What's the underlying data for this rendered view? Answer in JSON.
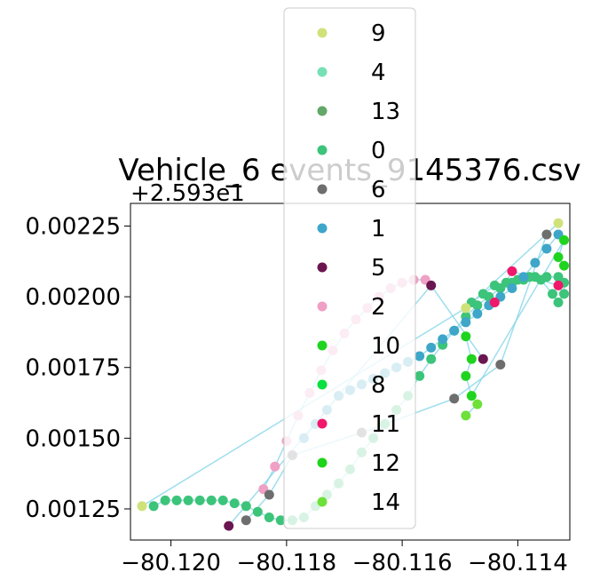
{
  "chart_data": {
    "type": "scatter",
    "title": "Vehicle_6 events_9145376.csv",
    "xlabel": "",
    "ylabel": "",
    "y_offset_label": "+2.593e1",
    "xlim": [
      -80.1207,
      -80.1131
    ],
    "ylim": [
      0.00114,
      0.00233
    ],
    "x_ticks": [
      -80.12,
      -80.118,
      -80.116,
      -80.114
    ],
    "x_tick_labels": [
      "−80.120",
      "−80.118",
      "−80.116",
      "−80.114"
    ],
    "y_ticks": [
      0.00125,
      0.0015,
      0.00175,
      0.002,
      0.00225
    ],
    "y_tick_labels": [
      "0.00125",
      "0.00150",
      "0.00175",
      "0.00200",
      "0.00225"
    ],
    "grid": false,
    "legend_position": "top-center",
    "legend": [
      {
        "label": "9",
        "color": "#cfe27a"
      },
      {
        "label": "4",
        "color": "#77e0b5"
      },
      {
        "label": "13",
        "color": "#62a868"
      },
      {
        "label": "0",
        "color": "#3cc47a"
      },
      {
        "label": "6",
        "color": "#6e6e6e"
      },
      {
        "label": "1",
        "color": "#3ea6c8"
      },
      {
        "label": "5",
        "color": "#6a1650"
      },
      {
        "label": "2",
        "color": "#f0a0c4"
      },
      {
        "label": "10",
        "color": "#1fd41f"
      },
      {
        "label": "8",
        "color": "#0ae03e"
      },
      {
        "label": "11",
        "color": "#f0186a"
      },
      {
        "label": "12",
        "color": "#1ed41a"
      },
      {
        "label": "14",
        "color": "#6ee03a"
      }
    ],
    "route_line_color": "#87d6e8",
    "series": [
      {
        "name": "0",
        "color": "#3cc47a",
        "x": [
          -80.1203,
          -80.1201,
          -80.1199,
          -80.1197,
          -80.1195,
          -80.1193,
          -80.1191,
          -80.1189,
          -80.1187,
          -80.1185,
          -80.1183,
          -80.1181,
          -80.1179,
          -80.1177,
          -80.1175,
          -80.1173,
          -80.1171,
          -80.1169,
          -80.1167,
          -80.1165,
          -80.1163,
          -80.1161,
          -80.1159,
          -80.1157,
          -80.1155,
          -80.1153,
          -80.1151,
          -80.1149,
          -80.1147,
          -80.1145,
          -80.1143,
          -80.1141,
          -80.1139,
          -80.1137,
          -80.1135,
          -80.1133,
          -80.1132,
          -80.1132,
          -80.1133,
          -80.1134,
          -80.1136,
          -80.1138,
          -80.114,
          -80.1142,
          -80.1144,
          -80.1146,
          -80.1148
        ],
        "y": [
          0.00126,
          0.00128,
          0.00128,
          0.00128,
          0.00128,
          0.00128,
          0.00128,
          0.00127,
          0.00126,
          0.00124,
          0.00122,
          0.00121,
          0.00121,
          0.00122,
          0.00126,
          0.0013,
          0.00134,
          0.00139,
          0.00145,
          0.0015,
          0.00155,
          0.0016,
          0.00165,
          0.00172,
          0.00178,
          0.00183,
          0.00188,
          0.00193,
          0.00197,
          0.002,
          0.00203,
          0.00205,
          0.00206,
          0.00207,
          0.00207,
          0.00207,
          0.00205,
          0.00201,
          0.00198,
          0.00201,
          0.00206,
          0.00207,
          0.00206,
          0.00205,
          0.00204,
          0.00201,
          0.00198
        ]
      },
      {
        "name": "1",
        "color": "#3ea6c8",
        "x": [
          -80.1177,
          -80.1175,
          -80.1173,
          -80.1171,
          -80.1169,
          -80.1167,
          -80.1165,
          -80.1163,
          -80.1161,
          -80.1159,
          -80.1157,
          -80.1155,
          -80.1153,
          -80.1151,
          -80.1149,
          -80.1147,
          -80.1145,
          -80.1143,
          -80.1141,
          -80.1139,
          -80.1137,
          -80.1135,
          -80.1133
        ],
        "y": [
          0.0015,
          0.00155,
          0.0016,
          0.00165,
          0.00167,
          0.00169,
          0.00171,
          0.00173,
          0.00175,
          0.00177,
          0.00179,
          0.00182,
          0.00185,
          0.00188,
          0.00191,
          0.00194,
          0.00197,
          0.002,
          0.00203,
          0.00207,
          0.00212,
          0.00217,
          0.00222
        ]
      },
      {
        "name": "2",
        "color": "#f0a0c4",
        "x": [
          -80.1184,
          -80.1182,
          -80.118,
          -80.1178,
          -80.1176,
          -80.1174,
          -80.1172,
          -80.117,
          -80.1168,
          -80.1166,
          -80.1164,
          -80.1162,
          -80.116,
          -80.1158,
          -80.1156
        ],
        "y": [
          0.00132,
          0.0014,
          0.00149,
          0.00158,
          0.00166,
          0.00174,
          0.00181,
          0.00187,
          0.00192,
          0.00196,
          0.002,
          0.00203,
          0.00205,
          0.00206,
          0.00206
        ]
      },
      {
        "name": "5",
        "color": "#6a1650",
        "x": [
          -80.119,
          -80.1155,
          -80.1146
        ],
        "y": [
          0.00119,
          0.00204,
          0.00178
        ]
      },
      {
        "name": "6",
        "color": "#6e6e6e",
        "x": [
          -80.1187,
          -80.1183,
          -80.1179,
          -80.1167,
          -80.1151,
          -80.1143,
          -80.1135
        ],
        "y": [
          0.00121,
          0.0013,
          0.00144,
          0.00152,
          0.00164,
          0.00176,
          0.00222
        ]
      },
      {
        "name": "9",
        "color": "#cfe27a",
        "x": [
          -80.1205,
          -80.1149,
          -80.1133
        ],
        "y": [
          0.00126,
          0.00196,
          0.00226
        ]
      },
      {
        "name": "10",
        "color": "#1fd41f",
        "x": [
          -80.1149,
          -80.1148,
          -80.1149,
          -80.1148,
          -80.1132,
          -80.1133,
          -80.1132
        ],
        "y": [
          0.00186,
          0.00178,
          0.00172,
          0.00165,
          0.0022,
          0.00214,
          0.00211
        ]
      },
      {
        "name": "11",
        "color": "#f0186a",
        "x": [
          -80.1144,
          -80.1141,
          -80.1133
        ],
        "y": [
          0.00198,
          0.00209,
          0.00204
        ]
      },
      {
        "name": "14",
        "color": "#6ee03a",
        "x": [
          -80.1149,
          -80.1147
        ],
        "y": [
          0.00158,
          0.00162
        ]
      }
    ]
  }
}
